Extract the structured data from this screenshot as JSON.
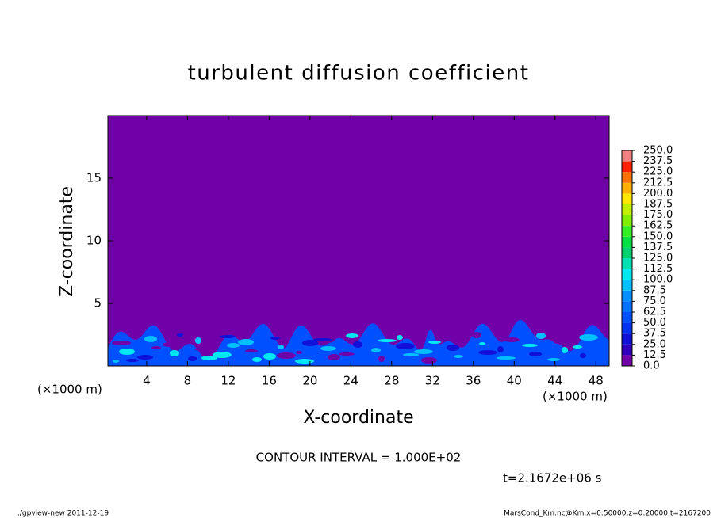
{
  "chart_data": {
    "type": "contour",
    "title": "turbulent diffusion coefficient",
    "x_label": "X-coordinate",
    "y_label": "Z-coordinate",
    "x_unit_label": "(×1000 m)",
    "contour_interval": "CONTOUR INTERVAL = 1.000E+02",
    "time_label": "t=2.1672e+06 s",
    "footer_left": "./gpview-new   2011-12-19",
    "footer_right": "MarsCond_Km.nc@Km,x=0:50000,z=0:20000,t=2167200",
    "xlim": [
      0.2,
      49.3
    ],
    "xticks": [
      4,
      8,
      12,
      16,
      20,
      24,
      28,
      32,
      36,
      40,
      44,
      48
    ],
    "ylim": [
      0,
      20
    ],
    "yticks": [
      5,
      10,
      15
    ],
    "colorbar": {
      "levels": [
        {
          "value": 0,
          "label": "0.0"
        },
        12.5,
        {
          "value": 25,
          "label": "25.0"
        },
        37.5,
        {
          "value": 50,
          "label": "50.0"
        },
        62.5,
        {
          "value": 75,
          "label": "75.0"
        },
        87.5,
        {
          "value": 100,
          "label": "100.0"
        },
        112.5,
        {
          "value": 125,
          "label": "125.0"
        },
        137.5,
        {
          "value": 150,
          "label": "150.0"
        },
        162.5,
        {
          "value": 175,
          "label": "175.0"
        },
        187.5,
        {
          "value": 200,
          "label": "200.0"
        },
        212.5,
        {
          "value": 225,
          "label": "225.0"
        },
        237.5,
        {
          "value": 250,
          "label": "250.0"
        }
      ],
      "colors": [
        "#7000a8",
        "#3000c0",
        "#1010d8",
        "#0030f0",
        "#0050ff",
        "#0070ff",
        "#0090ff",
        "#00c0ff",
        "#00e8f0",
        "#00e0b0",
        "#00d070",
        "#00e040",
        "#30f020",
        "#80f000",
        "#c0f000",
        "#ffe800",
        "#ffb000",
        "#ff7000",
        "#ff2000",
        "#f08080"
      ]
    }
  }
}
